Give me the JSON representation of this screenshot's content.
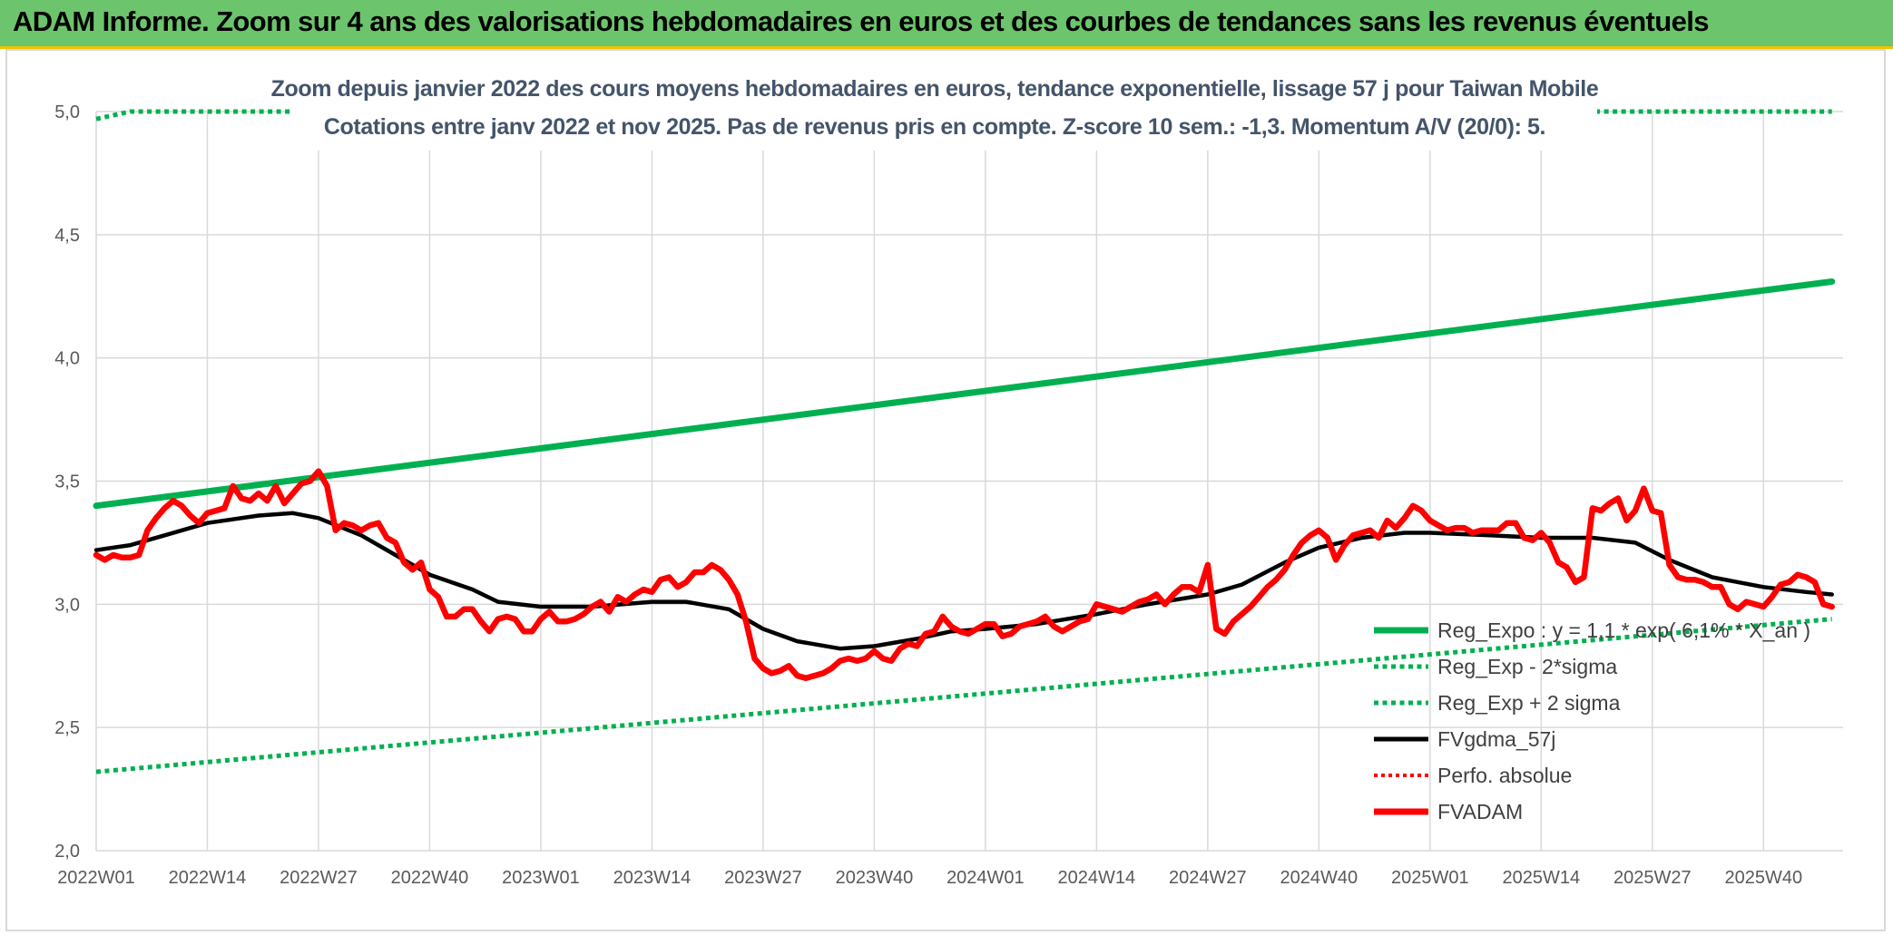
{
  "banner": {
    "title": "ADAM Informe. Zoom sur 4 ans des valorisations hebdomadaires en euros et des courbes de tendances sans les revenus éventuels"
  },
  "chart_data": {
    "type": "line",
    "title": [
      "Zoom depuis janvier 2022 des cours moyens hebdomadaires en euros, tendance exponentielle, lissage 57 j pour Taiwan Mobile",
      "Cotations entre janv 2022 et nov 2025. Pas de revenus pris en compte. Z-score 10 sem.: -1,3. Momentum A/V (20/0): 5."
    ],
    "xlabel": "",
    "ylabel": "",
    "ylim": [
      2.0,
      5.0
    ],
    "yticks": [
      "2,0",
      "2,5",
      "3,0",
      "3,5",
      "4,0",
      "4,5",
      "5,0"
    ],
    "xticks": [
      "2022W01",
      "2022W14",
      "2022W27",
      "2022W40",
      "2023W01",
      "2023W14",
      "2023W27",
      "2023W40",
      "2024W01",
      "2024W14",
      "2024W27",
      "2024W40",
      "2025W01",
      "2025W14",
      "2025W27",
      "2025W40"
    ],
    "grid": true,
    "legend_position": "bottom-right",
    "colors": {
      "green": "#00b050",
      "red": "#ff0000",
      "black": "#000000",
      "title": "#44546a"
    },
    "x_week_range": [
      "2022W01",
      "2025W48"
    ],
    "series": [
      {
        "name": "Reg_Expo : y = 1,1 * exp( 6,1% * X_an )",
        "style": "solid",
        "color": "#00b050",
        "points": [
          [
            "2022W01",
            3.4
          ],
          [
            "2025W48",
            4.31
          ]
        ]
      },
      {
        "name": "Reg_Exp - 2*sigma",
        "style": "dotted",
        "color": "#00b050",
        "points": [
          [
            "2022W01",
            2.32
          ],
          [
            "2025W48",
            2.94
          ]
        ]
      },
      {
        "name": "Reg_Exp + 2 sigma",
        "style": "dotted",
        "color": "#00b050",
        "points": [
          [
            "2022W01",
            4.97
          ],
          [
            "2022W05",
            5.0
          ],
          [
            "2025W48",
            5.0
          ]
        ]
      },
      {
        "name": "FVgdma_57j",
        "style": "solid",
        "color": "#000000",
        "points": [
          [
            "2022W01",
            3.22
          ],
          [
            "2022W05",
            3.24
          ],
          [
            "2022W09",
            3.28
          ],
          [
            "2022W14",
            3.33
          ],
          [
            "2022W20",
            3.36
          ],
          [
            "2022W24",
            3.37
          ],
          [
            "2022W27",
            3.35
          ],
          [
            "2022W32",
            3.28
          ],
          [
            "2022W36",
            3.2
          ],
          [
            "2022W40",
            3.12
          ],
          [
            "2022W45",
            3.06
          ],
          [
            "2022W48",
            3.01
          ],
          [
            "2023W01",
            2.99
          ],
          [
            "2023W07",
            2.99
          ],
          [
            "2023W14",
            3.01
          ],
          [
            "2023W18",
            3.01
          ],
          [
            "2023W23",
            2.98
          ],
          [
            "2023W27",
            2.9
          ],
          [
            "2023W31",
            2.85
          ],
          [
            "2023W36",
            2.82
          ],
          [
            "2023W40",
            2.83
          ],
          [
            "2023W45",
            2.86
          ],
          [
            "2023W49",
            2.89
          ],
          [
            "2024W01",
            2.9
          ],
          [
            "2024W07",
            2.92
          ],
          [
            "2024W14",
            2.96
          ],
          [
            "2024W20",
            3.0
          ],
          [
            "2024W27",
            3.04
          ],
          [
            "2024W31",
            3.08
          ],
          [
            "2024W36",
            3.17
          ],
          [
            "2024W40",
            3.23
          ],
          [
            "2024W45",
            3.27
          ],
          [
            "2024W50",
            3.29
          ],
          [
            "2025W01",
            3.29
          ],
          [
            "2025W08",
            3.28
          ],
          [
            "2025W14",
            3.27
          ],
          [
            "2025W20",
            3.27
          ],
          [
            "2025W25",
            3.25
          ],
          [
            "2025W29",
            3.18
          ],
          [
            "2025W34",
            3.11
          ],
          [
            "2025W40",
            3.07
          ],
          [
            "2025W45",
            3.05
          ],
          [
            "2025W48",
            3.04
          ]
        ]
      },
      {
        "name": "Perfo. absolue",
        "style": "dotted",
        "color": "#ff0000",
        "points": []
      },
      {
        "name": "FVADAM",
        "style": "solid",
        "color": "#ff0000",
        "points": [
          [
            "2022W01",
            3.2
          ],
          [
            "2022W02",
            3.18
          ],
          [
            "2022W03",
            3.2
          ],
          [
            "2022W04",
            3.19
          ],
          [
            "2022W05",
            3.19
          ],
          [
            "2022W06",
            3.2
          ],
          [
            "2022W07",
            3.3
          ],
          [
            "2022W08",
            3.35
          ],
          [
            "2022W09",
            3.39
          ],
          [
            "2022W10",
            3.42
          ],
          [
            "2022W11",
            3.4
          ],
          [
            "2022W12",
            3.36
          ],
          [
            "2022W13",
            3.33
          ],
          [
            "2022W14",
            3.37
          ],
          [
            "2022W15",
            3.38
          ],
          [
            "2022W16",
            3.39
          ],
          [
            "2022W17",
            3.48
          ],
          [
            "2022W18",
            3.43
          ],
          [
            "2022W19",
            3.42
          ],
          [
            "2022W20",
            3.45
          ],
          [
            "2022W21",
            3.42
          ],
          [
            "2022W22",
            3.48
          ],
          [
            "2022W23",
            3.41
          ],
          [
            "2022W24",
            3.45
          ],
          [
            "2022W25",
            3.49
          ],
          [
            "2022W26",
            3.5
          ],
          [
            "2022W27",
            3.54
          ],
          [
            "2022W28",
            3.48
          ],
          [
            "2022W29",
            3.3
          ],
          [
            "2022W30",
            3.33
          ],
          [
            "2022W31",
            3.32
          ],
          [
            "2022W32",
            3.3
          ],
          [
            "2022W33",
            3.32
          ],
          [
            "2022W34",
            3.33
          ],
          [
            "2022W35",
            3.27
          ],
          [
            "2022W36",
            3.25
          ],
          [
            "2022W37",
            3.17
          ],
          [
            "2022W38",
            3.14
          ],
          [
            "2022W39",
            3.17
          ],
          [
            "2022W40",
            3.06
          ],
          [
            "2022W41",
            3.03
          ],
          [
            "2022W42",
            2.95
          ],
          [
            "2022W43",
            2.95
          ],
          [
            "2022W44",
            2.98
          ],
          [
            "2022W45",
            2.98
          ],
          [
            "2022W46",
            2.93
          ],
          [
            "2022W47",
            2.89
          ],
          [
            "2022W48",
            2.94
          ],
          [
            "2022W49",
            2.95
          ],
          [
            "2022W50",
            2.94
          ],
          [
            "2022W51",
            2.89
          ],
          [
            "2022W52",
            2.89
          ],
          [
            "2023W01",
            2.94
          ],
          [
            "2023W02",
            2.97
          ],
          [
            "2023W03",
            2.93
          ],
          [
            "2023W04",
            2.93
          ],
          [
            "2023W05",
            2.94
          ],
          [
            "2023W06",
            2.96
          ],
          [
            "2023W07",
            2.99
          ],
          [
            "2023W08",
            3.01
          ],
          [
            "2023W09",
            2.97
          ],
          [
            "2023W10",
            3.03
          ],
          [
            "2023W11",
            3.01
          ],
          [
            "2023W12",
            3.04
          ],
          [
            "2023W13",
            3.06
          ],
          [
            "2023W14",
            3.05
          ],
          [
            "2023W15",
            3.1
          ],
          [
            "2023W16",
            3.11
          ],
          [
            "2023W17",
            3.07
          ],
          [
            "2023W18",
            3.09
          ],
          [
            "2023W19",
            3.13
          ],
          [
            "2023W20",
            3.13
          ],
          [
            "2023W21",
            3.16
          ],
          [
            "2023W22",
            3.14
          ],
          [
            "2023W23",
            3.1
          ],
          [
            "2023W24",
            3.04
          ],
          [
            "2023W25",
            2.93
          ],
          [
            "2023W26",
            2.78
          ],
          [
            "2023W27",
            2.74
          ],
          [
            "2023W28",
            2.72
          ],
          [
            "2023W29",
            2.73
          ],
          [
            "2023W30",
            2.75
          ],
          [
            "2023W31",
            2.71
          ],
          [
            "2023W32",
            2.7
          ],
          [
            "2023W33",
            2.71
          ],
          [
            "2023W34",
            2.72
          ],
          [
            "2023W35",
            2.74
          ],
          [
            "2023W36",
            2.77
          ],
          [
            "2023W37",
            2.78
          ],
          [
            "2023W38",
            2.77
          ],
          [
            "2023W39",
            2.78
          ],
          [
            "2023W40",
            2.81
          ],
          [
            "2023W41",
            2.78
          ],
          [
            "2023W42",
            2.77
          ],
          [
            "2023W43",
            2.82
          ],
          [
            "2023W44",
            2.84
          ],
          [
            "2023W45",
            2.83
          ],
          [
            "2023W46",
            2.88
          ],
          [
            "2023W47",
            2.89
          ],
          [
            "2023W48",
            2.95
          ],
          [
            "2023W49",
            2.91
          ],
          [
            "2023W50",
            2.89
          ],
          [
            "2023W51",
            2.88
          ],
          [
            "2024W01",
            2.92
          ],
          [
            "2024W02",
            2.92
          ],
          [
            "2024W03",
            2.87
          ],
          [
            "2024W04",
            2.88
          ],
          [
            "2024W05",
            2.91
          ],
          [
            "2024W06",
            2.92
          ],
          [
            "2024W07",
            2.93
          ],
          [
            "2024W08",
            2.95
          ],
          [
            "2024W09",
            2.91
          ],
          [
            "2024W10",
            2.89
          ],
          [
            "2024W11",
            2.91
          ],
          [
            "2024W12",
            2.93
          ],
          [
            "2024W13",
            2.94
          ],
          [
            "2024W14",
            3.0
          ],
          [
            "2024W15",
            2.99
          ],
          [
            "2024W16",
            2.98
          ],
          [
            "2024W17",
            2.97
          ],
          [
            "2024W18",
            2.99
          ],
          [
            "2024W19",
            3.01
          ],
          [
            "2024W20",
            3.02
          ],
          [
            "2024W21",
            3.04
          ],
          [
            "2024W22",
            3.0
          ],
          [
            "2024W23",
            3.04
          ],
          [
            "2024W24",
            3.07
          ],
          [
            "2024W25",
            3.07
          ],
          [
            "2024W26",
            3.05
          ],
          [
            "2024W27",
            3.16
          ],
          [
            "2024W28",
            2.9
          ],
          [
            "2024W29",
            2.88
          ],
          [
            "2024W30",
            2.93
          ],
          [
            "2024W31",
            2.96
          ],
          [
            "2024W32",
            2.99
          ],
          [
            "2024W33",
            3.03
          ],
          [
            "2024W34",
            3.07
          ],
          [
            "2024W35",
            3.1
          ],
          [
            "2024W36",
            3.14
          ],
          [
            "2024W37",
            3.2
          ],
          [
            "2024W38",
            3.25
          ],
          [
            "2024W39",
            3.28
          ],
          [
            "2024W40",
            3.3
          ],
          [
            "2024W41",
            3.27
          ],
          [
            "2024W42",
            3.18
          ],
          [
            "2024W43",
            3.24
          ],
          [
            "2024W44",
            3.28
          ],
          [
            "2024W45",
            3.29
          ],
          [
            "2024W46",
            3.3
          ],
          [
            "2024W47",
            3.27
          ],
          [
            "2024W48",
            3.34
          ],
          [
            "2024W49",
            3.31
          ],
          [
            "2024W50",
            3.35
          ],
          [
            "2024W51",
            3.4
          ],
          [
            "2024W52",
            3.38
          ],
          [
            "2025W01",
            3.34
          ],
          [
            "2025W02",
            3.32
          ],
          [
            "2025W03",
            3.3
          ],
          [
            "2025W04",
            3.31
          ],
          [
            "2025W05",
            3.31
          ],
          [
            "2025W06",
            3.29
          ],
          [
            "2025W07",
            3.3
          ],
          [
            "2025W08",
            3.3
          ],
          [
            "2025W09",
            3.3
          ],
          [
            "2025W10",
            3.33
          ],
          [
            "2025W11",
            3.33
          ],
          [
            "2025W12",
            3.27
          ],
          [
            "2025W13",
            3.26
          ],
          [
            "2025W14",
            3.29
          ],
          [
            "2025W15",
            3.25
          ],
          [
            "2025W16",
            3.17
          ],
          [
            "2025W17",
            3.15
          ],
          [
            "2025W18",
            3.09
          ],
          [
            "2025W19",
            3.11
          ],
          [
            "2025W20",
            3.39
          ],
          [
            "2025W21",
            3.38
          ],
          [
            "2025W22",
            3.41
          ],
          [
            "2025W23",
            3.43
          ],
          [
            "2025W24",
            3.34
          ],
          [
            "2025W25",
            3.38
          ],
          [
            "2025W26",
            3.47
          ],
          [
            "2025W27",
            3.38
          ],
          [
            "2025W28",
            3.37
          ],
          [
            "2025W29",
            3.16
          ],
          [
            "2025W30",
            3.11
          ],
          [
            "2025W31",
            3.1
          ],
          [
            "2025W32",
            3.1
          ],
          [
            "2025W33",
            3.09
          ],
          [
            "2025W34",
            3.07
          ],
          [
            "2025W35",
            3.07
          ],
          [
            "2025W36",
            3.0
          ],
          [
            "2025W37",
            2.98
          ],
          [
            "2025W38",
            3.01
          ],
          [
            "2025W39",
            3.0
          ],
          [
            "2025W40",
            2.99
          ],
          [
            "2025W41",
            3.03
          ],
          [
            "2025W42",
            3.08
          ],
          [
            "2025W43",
            3.09
          ],
          [
            "2025W44",
            3.12
          ],
          [
            "2025W45",
            3.11
          ],
          [
            "2025W46",
            3.09
          ],
          [
            "2025W47",
            3.0
          ],
          [
            "2025W48",
            2.99
          ]
        ]
      }
    ]
  }
}
